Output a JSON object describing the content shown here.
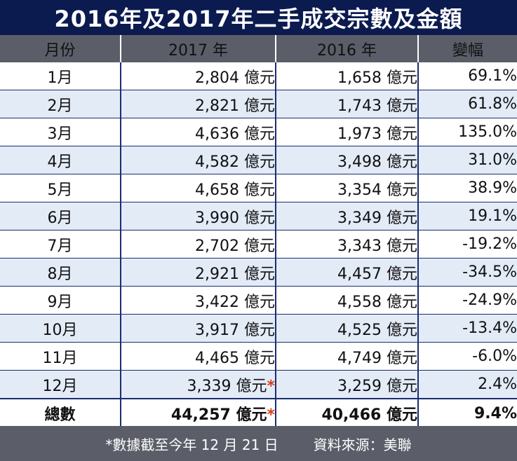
{
  "title": "2016年及2017年二手成交宗數及金額",
  "headers": [
    "月份",
    "2017 年",
    "2016 年",
    "變幅"
  ],
  "rows": [
    {
      "month": "1月",
      "y2017": "2,804 億元",
      "y2016": "1,658 億元",
      "change": "69.1%",
      "star": ""
    },
    {
      "month": "2月",
      "y2017": "2,821 億元",
      "y2016": "1,743 億元",
      "change": "61.8%",
      "star": ""
    },
    {
      "month": "3月",
      "y2017": "4,636 億元",
      "y2016": "1,973 億元",
      "change": "135.0%",
      "star": ""
    },
    {
      "month": "4月",
      "y2017": "4,582 億元",
      "y2016": "3,498 億元",
      "change": "31.0%",
      "star": ""
    },
    {
      "month": "5月",
      "y2017": "4,658 億元",
      "y2016": "3,354 億元",
      "change": "38.9%",
      "star": ""
    },
    {
      "month": "6月",
      "y2017": "3,990 億元",
      "y2016": "3,349 億元",
      "change": "19.1%",
      "star": ""
    },
    {
      "month": "7月",
      "y2017": "2,702 億元",
      "y2016": "3,343 億元",
      "change": "-19.2%",
      "star": ""
    },
    {
      "month": "8月",
      "y2017": "2,921 億元",
      "y2016": "4,457 億元",
      "change": "-34.5%",
      "star": ""
    },
    {
      "month": "9月",
      "y2017": "3,422 億元",
      "y2016": "4,558 億元",
      "change": "-24.9%",
      "star": ""
    },
    {
      "month": "10月",
      "y2017": "3,917 億元",
      "y2016": "4,525 億元",
      "change": "-13.4%",
      "star": ""
    },
    {
      "month": "11月",
      "y2017": "4,465 億元",
      "y2016": "4,749 億元",
      "change": "-6.0%",
      "star": ""
    },
    {
      "month": "12月",
      "y2017": "3,339 億元",
      "y2016": "3,259 億元",
      "change": "2.4%",
      "star": "*"
    }
  ],
  "total": {
    "label": "總數",
    "y2017": "44,257 億元",
    "y2016": "40,466 億元",
    "change": "9.4%",
    "star": "*"
  },
  "footer": {
    "note": "*數據截至今年 12 月 21 日",
    "source": "資料來源：美聯"
  },
  "colors": {
    "title_bg": "#0b1a4f",
    "header_bg": "#5b5e68",
    "stripe": "#e3ebf7",
    "negative": "#d9401c"
  }
}
